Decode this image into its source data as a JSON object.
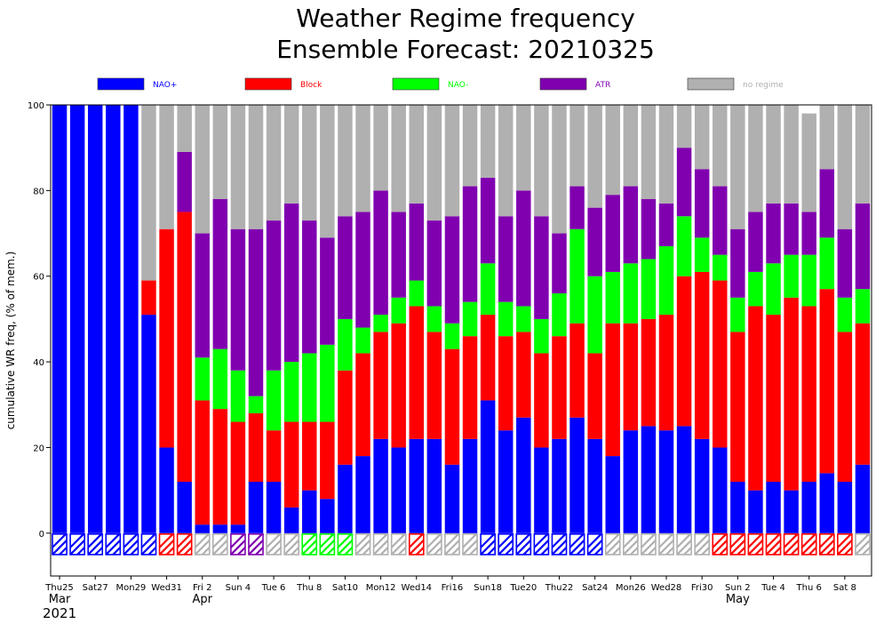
{
  "chart_data": {
    "type": "bar",
    "stacked": true,
    "title": "Weather Regime frequency",
    "subtitle": "Ensemble Forecast: 20210325",
    "ylabel": "cumulative WR freq, (% of mem.)",
    "ylim": [
      -10,
      100
    ],
    "yticks": [
      "0",
      "20",
      "40",
      "60",
      "80",
      "100"
    ],
    "legend_position": "top",
    "series": [
      {
        "name": "NAO+",
        "color": "#0000ff",
        "values": [
          100,
          100,
          100,
          100,
          100,
          51,
          20,
          12,
          2,
          2,
          2,
          12,
          12,
          6,
          10,
          8,
          16,
          18,
          22,
          20,
          22,
          22,
          16,
          22,
          31,
          24,
          27,
          20,
          22,
          27,
          22,
          18,
          24,
          25,
          24,
          25,
          22,
          20,
          12,
          10,
          12,
          10,
          12,
          14,
          12,
          16
        ]
      },
      {
        "name": "Block",
        "color": "#ff0000",
        "values": [
          0,
          0,
          0,
          0,
          0,
          8,
          51,
          63,
          29,
          27,
          24,
          16,
          12,
          20,
          16,
          18,
          22,
          24,
          25,
          29,
          31,
          25,
          27,
          24,
          20,
          22,
          20,
          22,
          24,
          22,
          20,
          31,
          25,
          25,
          27,
          35,
          39,
          39,
          35,
          43,
          39,
          45,
          41,
          43,
          35,
          33
        ]
      },
      {
        "name": "NAO-",
        "color": "#00ff00",
        "values": [
          0,
          0,
          0,
          0,
          0,
          0,
          0,
          0,
          10,
          14,
          12,
          4,
          14,
          14,
          16,
          18,
          12,
          6,
          4,
          6,
          6,
          6,
          6,
          8,
          12,
          8,
          6,
          8,
          10,
          22,
          18,
          12,
          14,
          14,
          16,
          14,
          8,
          6,
          8,
          8,
          12,
          10,
          12,
          12,
          8,
          8
        ]
      },
      {
        "name": "ATR",
        "color": "#8000b0",
        "values": [
          0,
          0,
          0,
          0,
          0,
          0,
          0,
          14,
          29,
          35,
          33,
          39,
          35,
          37,
          31,
          25,
          24,
          27,
          29,
          20,
          18,
          20,
          25,
          27,
          20,
          20,
          27,
          24,
          14,
          10,
          16,
          18,
          18,
          14,
          10,
          16,
          16,
          16,
          16,
          14,
          14,
          12,
          10,
          16,
          16,
          20
        ]
      },
      {
        "name": "no regime",
        "color": "#b0b0b0",
        "values": [
          0,
          0,
          0,
          0,
          0,
          41,
          29,
          11,
          30,
          22,
          29,
          29,
          27,
          23,
          27,
          31,
          26,
          25,
          20,
          25,
          23,
          27,
          26,
          19,
          17,
          26,
          20,
          26,
          30,
          19,
          24,
          21,
          19,
          22,
          23,
          10,
          15,
          19,
          29,
          25,
          23,
          23,
          23,
          15,
          29,
          23
        ]
      }
    ],
    "dominant_regime_colors": [
      "#0000ff",
      "#0000ff",
      "#0000ff",
      "#0000ff",
      "#0000ff",
      "#0000ff",
      "#ff0000",
      "#ff0000",
      "#b0b0b0",
      "#b0b0b0",
      "#8000b0",
      "#8000b0",
      "#b0b0b0",
      "#b0b0b0",
      "#00ff00",
      "#00ff00",
      "#00ff00",
      "#b0b0b0",
      "#b0b0b0",
      "#b0b0b0",
      "#ff0000",
      "#b0b0b0",
      "#b0b0b0",
      "#b0b0b0",
      "#0000ff",
      "#0000ff",
      "#0000ff",
      "#0000ff",
      "#0000ff",
      "#0000ff",
      "#0000ff",
      "#b0b0b0",
      "#b0b0b0",
      "#b0b0b0",
      "#b0b0b0",
      "#b0b0b0",
      "#b0b0b0",
      "#ff0000",
      "#ff0000",
      "#ff0000",
      "#ff0000",
      "#ff0000",
      "#ff0000",
      "#ff0000",
      "#ff0000",
      "#b0b0b0"
    ],
    "xtick_labels": [
      {
        "index": 0,
        "text": "Thu25",
        "color": "#000000"
      },
      {
        "index": 2,
        "text": "Sat27",
        "color": "#000000"
      },
      {
        "index": 4,
        "text": "Mon29",
        "color": "#000000"
      },
      {
        "index": 6,
        "text": "Wed31",
        "color": "#000000"
      },
      {
        "index": 8,
        "text": "Fri 2",
        "color": "#000000"
      },
      {
        "index": 10,
        "text": "Sun 4",
        "color": "#ff0000"
      },
      {
        "index": 12,
        "text": "Tue 6",
        "color": "#000000"
      },
      {
        "index": 14,
        "text": "Thu 8",
        "color": "#000000"
      },
      {
        "index": 16,
        "text": "Sat10",
        "color": "#000000"
      },
      {
        "index": 18,
        "text": "Mon12",
        "color": "#000000"
      },
      {
        "index": 20,
        "text": "Wed14",
        "color": "#000000"
      },
      {
        "index": 22,
        "text": "Fri16",
        "color": "#000000"
      },
      {
        "index": 24,
        "text": "Sun18",
        "color": "#ff0000"
      },
      {
        "index": 26,
        "text": "Tue20",
        "color": "#000000"
      },
      {
        "index": 28,
        "text": "Thu22",
        "color": "#000000"
      },
      {
        "index": 30,
        "text": "Sat24",
        "color": "#000000"
      },
      {
        "index": 32,
        "text": "Mon26",
        "color": "#000000"
      },
      {
        "index": 34,
        "text": "Wed28",
        "color": "#000000"
      },
      {
        "index": 36,
        "text": "Fri30",
        "color": "#000000"
      },
      {
        "index": 38,
        "text": "Sun 2",
        "color": "#ff0000"
      },
      {
        "index": 40,
        "text": "Tue 4",
        "color": "#000000"
      },
      {
        "index": 42,
        "text": "Thu 6",
        "color": "#000000"
      },
      {
        "index": 44,
        "text": "Sat 8",
        "color": "#000000"
      }
    ],
    "month_labels": [
      {
        "index": 0,
        "text": "Mar"
      },
      {
        "index": 8,
        "text": "Apr"
      },
      {
        "index": 38,
        "text": "May"
      }
    ],
    "year_label": "2021"
  }
}
